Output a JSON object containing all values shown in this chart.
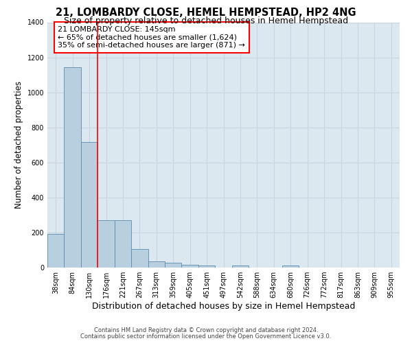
{
  "title1": "21, LOMBARDY CLOSE, HEMEL HEMPSTEAD, HP2 4NG",
  "title2": "Size of property relative to detached houses in Hemel Hempstead",
  "xlabel": "Distribution of detached houses by size in Hemel Hempstead",
  "ylabel": "Number of detached properties",
  "categories": [
    "38sqm",
    "84sqm",
    "130sqm",
    "176sqm",
    "221sqm",
    "267sqm",
    "313sqm",
    "359sqm",
    "405sqm",
    "451sqm",
    "497sqm",
    "542sqm",
    "588sqm",
    "634sqm",
    "680sqm",
    "726sqm",
    "772sqm",
    "817sqm",
    "863sqm",
    "909sqm",
    "955sqm"
  ],
  "values": [
    193,
    1145,
    715,
    270,
    270,
    107,
    35,
    28,
    14,
    13,
    0,
    13,
    0,
    0,
    13,
    0,
    0,
    0,
    0,
    0,
    0
  ],
  "bar_color": "#b8cfe0",
  "bar_edge_color": "#5a8ab0",
  "grid_color": "#c8d4e0",
  "background_color": "#dce8f0",
  "annotation_line1": "21 LOMBARDY CLOSE: 145sqm",
  "annotation_line2": "← 65% of detached houses are smaller (1,624)",
  "annotation_line3": "35% of semi-detached houses are larger (871) →",
  "vline_position": 2.5,
  "vline_color": "red",
  "ylim": [
    0,
    1400
  ],
  "yticks": [
    0,
    200,
    400,
    600,
    800,
    1000,
    1200,
    1400
  ],
  "footer1": "Contains HM Land Registry data © Crown copyright and database right 2024.",
  "footer2": "Contains public sector information licensed under the Open Government Licence v3.0.",
  "title1_fontsize": 10.5,
  "title2_fontsize": 9,
  "annotation_fontsize": 8,
  "tick_fontsize": 7,
  "ylabel_fontsize": 8.5,
  "xlabel_fontsize": 9,
  "footer_fontsize": 6
}
